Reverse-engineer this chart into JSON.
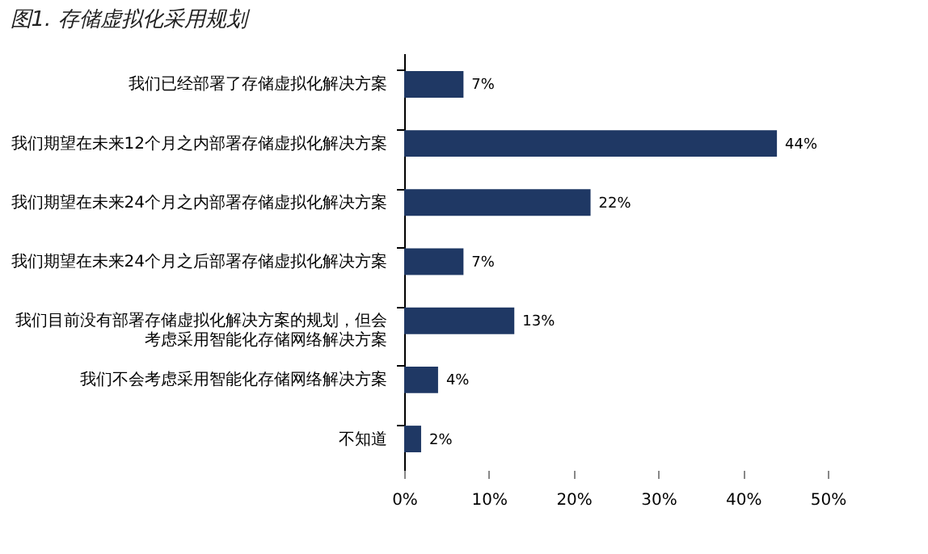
{
  "chart_data": {
    "type": "bar",
    "orientation": "horizontal",
    "title": "图1. 存储虚拟化采用规划",
    "categories": [
      "我们已经部署了存储虚拟化解决方案",
      "我们期望在未来12个月之内部署存储虚拟化解决方案",
      "我们期望在未来24个月之内部署存储虚拟化解决方案",
      "我们期望在未来24个月之后部署存储虚拟化解决方案",
      "我们目前没有部署存储虚拟化解决方案的规划，但会考虑采用智能化存储网络解决方案",
      "我们不会考虑采用智能化存储网络解决方案",
      "不知道"
    ],
    "values": [
      7,
      44,
      22,
      7,
      13,
      4,
      2
    ],
    "value_labels": [
      "7%",
      "44%",
      "22%",
      "7%",
      "13%",
      "4%",
      "2%"
    ],
    "color": "#1f3864",
    "xlim": [
      0,
      50
    ],
    "xticks": [
      {
        "value": 0,
        "label": "0%"
      },
      {
        "value": 10,
        "label": "10%"
      },
      {
        "value": 20,
        "label": "20%"
      },
      {
        "value": 30,
        "label": "30%"
      },
      {
        "value": 40,
        "label": "40%"
      },
      {
        "value": 50,
        "label": "50%"
      }
    ],
    "grid": false
  }
}
